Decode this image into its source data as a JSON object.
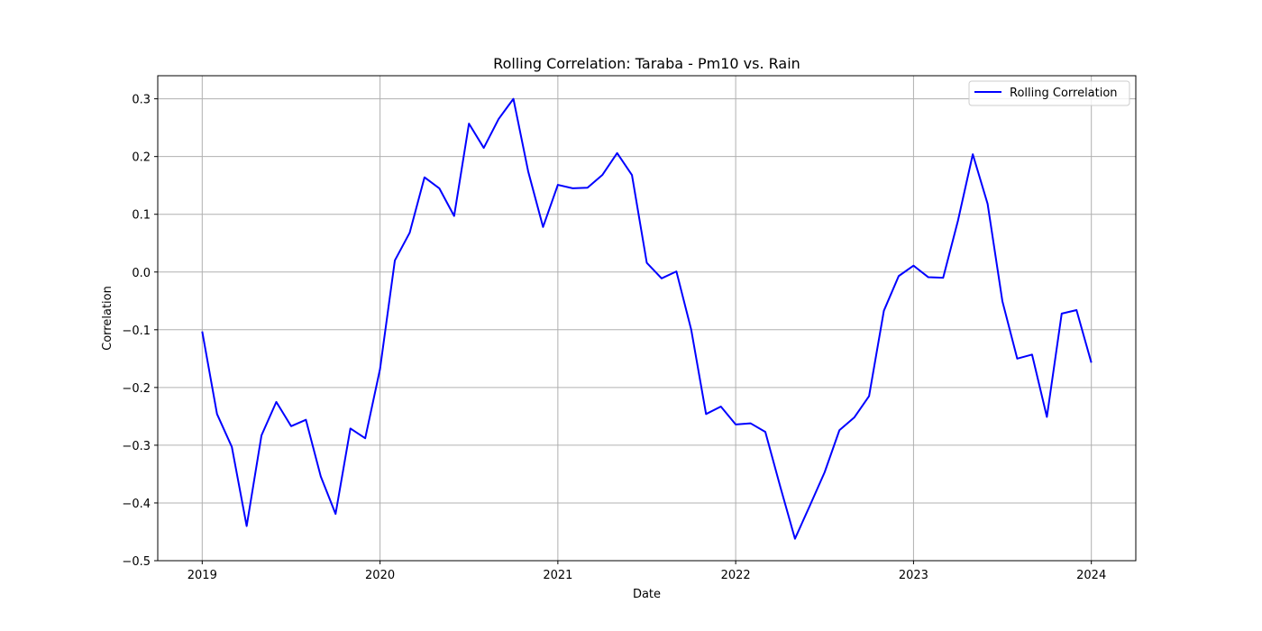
{
  "chart_data": {
    "type": "line",
    "title": "Rolling Correlation: Taraba - Pm10 vs. Rain",
    "xlabel": "Date",
    "ylabel": "Correlation",
    "xlim": [
      2018.75,
      2024.25
    ],
    "ylim": [
      -0.5,
      0.34
    ],
    "x_ticks": [
      2019,
      2020,
      2021,
      2022,
      2023,
      2024
    ],
    "x_tick_labels": [
      "2019",
      "2020",
      "2021",
      "2022",
      "2023",
      "2024"
    ],
    "y_ticks": [
      -0.5,
      -0.4,
      -0.3,
      -0.2,
      -0.1,
      0.0,
      0.1,
      0.2,
      0.3
    ],
    "y_tick_labels": [
      "−0.5",
      "−0.4",
      "−0.3",
      "−0.2",
      "−0.1",
      "0.0",
      "0.1",
      "0.2",
      "0.3"
    ],
    "grid": true,
    "legend_position": "top-right",
    "colors": {
      "series": "#0000ff",
      "grid": "#b0b0b0",
      "legend_border": "#cccccc"
    },
    "x": [
      "2019-01",
      "2019-02",
      "2019-03",
      "2019-04",
      "2019-05",
      "2019-06",
      "2019-07",
      "2019-08",
      "2019-09",
      "2019-10",
      "2019-11",
      "2019-12",
      "2020-01",
      "2020-02",
      "2020-03",
      "2020-04",
      "2020-05",
      "2020-06",
      "2020-07",
      "2020-08",
      "2020-09",
      "2020-10",
      "2020-11",
      "2020-12",
      "2021-01",
      "2021-02",
      "2021-03",
      "2021-04",
      "2021-05",
      "2021-06",
      "2021-07",
      "2021-08",
      "2021-09",
      "2021-10",
      "2021-11",
      "2021-12",
      "2022-01",
      "2022-02",
      "2022-03",
      "2022-04",
      "2022-05",
      "2022-06",
      "2022-07",
      "2022-08",
      "2022-09",
      "2022-10",
      "2022-11",
      "2022-12",
      "2023-01",
      "2023-02",
      "2023-03",
      "2023-04",
      "2023-05",
      "2023-06",
      "2023-07",
      "2023-08",
      "2023-09",
      "2023-10",
      "2023-11",
      "2023-12",
      "2024-01"
    ],
    "series": [
      {
        "name": "Rolling Correlation",
        "values": [
          -0.103,
          -0.246,
          -0.303,
          -0.44,
          -0.283,
          -0.225,
          -0.267,
          -0.256,
          -0.354,
          -0.419,
          -0.271,
          -0.288,
          -0.168,
          0.02,
          0.068,
          0.164,
          0.145,
          0.097,
          0.257,
          0.215,
          0.265,
          0.3,
          0.174,
          0.078,
          0.151,
          0.145,
          0.146,
          0.168,
          0.206,
          0.168,
          0.016,
          -0.011,
          0.001,
          -0.1,
          -0.246,
          -0.233,
          -0.264,
          -0.262,
          -0.277,
          -0.371,
          -0.462,
          -0.405,
          -0.347,
          -0.274,
          -0.252,
          -0.215,
          -0.067,
          -0.007,
          0.011,
          -0.009,
          -0.01,
          0.089,
          0.204,
          0.118,
          -0.051,
          -0.15,
          -0.143,
          -0.251,
          -0.072,
          -0.066,
          -0.157
        ]
      }
    ]
  }
}
